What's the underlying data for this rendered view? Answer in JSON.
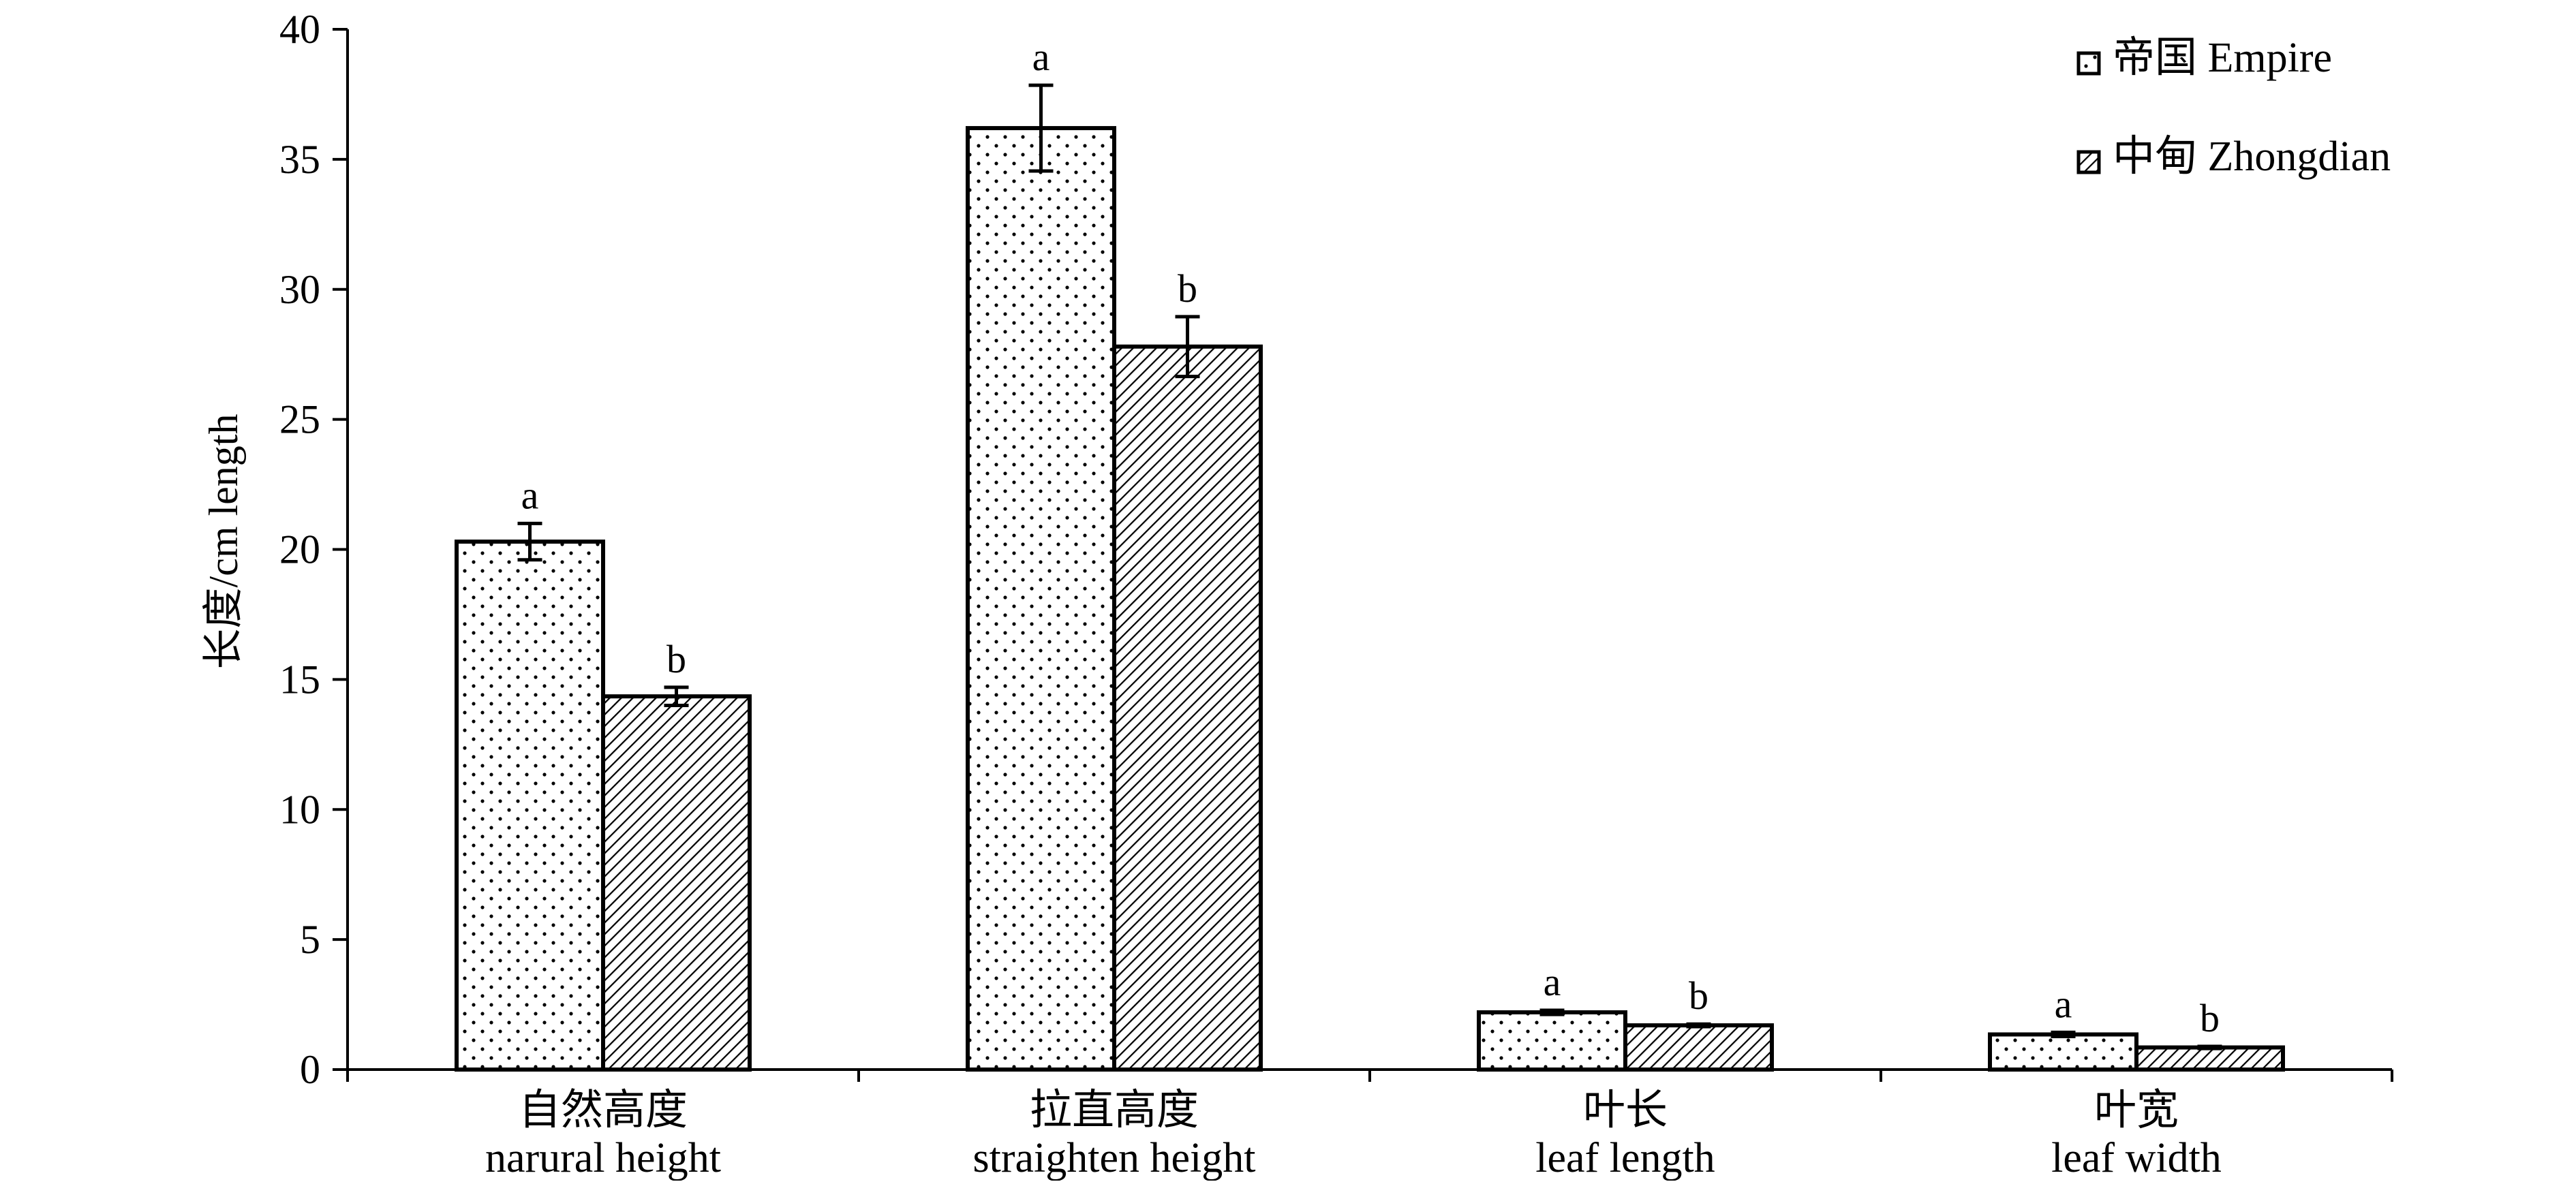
{
  "chart_data": {
    "type": "bar",
    "ylabel": "长度/cm length",
    "ylim": [
      0,
      40
    ],
    "yticks": [
      0,
      5,
      10,
      15,
      20,
      25,
      30,
      35,
      40
    ],
    "grid": false,
    "legend_position": "top-right",
    "categories": [
      {
        "cn": "自然高度",
        "en": "narural height"
      },
      {
        "cn": "拉直高度",
        "en": "straighten height"
      },
      {
        "cn": "叶长",
        "en": "leaf length"
      },
      {
        "cn": "叶宽",
        "en": "leaf width"
      }
    ],
    "series": [
      {
        "name": "帝国 Empire",
        "pattern": "dots",
        "values": [
          20.3,
          36.2,
          2.2,
          1.35
        ],
        "errors": [
          0.7,
          1.65,
          0.08,
          0.08
        ],
        "significance": [
          "a",
          "a",
          "a",
          "a"
        ]
      },
      {
        "name": "中甸 Zhongdian",
        "pattern": "hatch",
        "values": [
          14.35,
          27.8,
          1.7,
          0.85
        ],
        "errors": [
          0.35,
          1.15,
          0.05,
          0.04
        ],
        "significance": [
          "b",
          "b",
          "b",
          "b"
        ]
      }
    ]
  },
  "colors": {
    "axis": "#000000",
    "bar_fill": "#ffffff",
    "pattern_ink": "#000000"
  }
}
